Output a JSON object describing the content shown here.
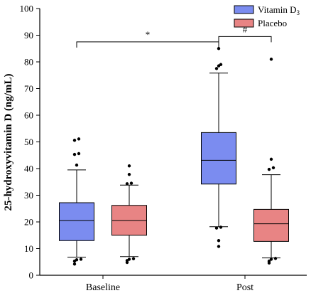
{
  "chart_data": {
    "type": "boxplot",
    "ylabel": "25-hydroxyvitamin D (ng/mL)",
    "ylim": [
      0,
      100
    ],
    "y_ticks": [
      0,
      10,
      20,
      30,
      40,
      50,
      60,
      70,
      80,
      90,
      100
    ],
    "categories": [
      "Baseline",
      "Post"
    ],
    "legend_placement": "top-right",
    "series": [
      {
        "name": "Vitamin D3",
        "name_base": "Vitamin D",
        "name_sub": "3",
        "color": "#7b8cf0",
        "boxes": [
          {
            "category": "Baseline",
            "whisker_low": 6.8,
            "q1": 13,
            "median": 20.5,
            "q3": 27.2,
            "whisker_high": 39.5,
            "outliers": [
              4.2,
              5.3,
              5.8,
              6.0,
              41.3,
              45.3,
              45.6,
              50.6,
              51.1
            ]
          },
          {
            "category": "Post",
            "whisker_low": 18.2,
            "q1": 34.2,
            "median": 43.1,
            "q3": 53.5,
            "whisker_high": 75.8,
            "outliers": [
              10.8,
              13.0,
              17.7,
              18.0,
              77.5,
              78.5,
              79.0,
              85.0
            ]
          }
        ]
      },
      {
        "name": "Placebo",
        "color": "#e88484",
        "boxes": [
          {
            "category": "Baseline",
            "whisker_low": 7.0,
            "q1": 15.0,
            "median": 20.5,
            "q3": 26.2,
            "whisker_high": 33.8,
            "outliers": [
              4.8,
              5.5,
              6.0,
              6.2,
              34.3,
              34.5,
              37.8,
              41.0
            ]
          },
          {
            "category": "Post",
            "whisker_low": 6.5,
            "q1": 12.7,
            "median": 19.3,
            "q3": 24.7,
            "whisker_high": 37.7,
            "outliers": [
              4.6,
              5.3,
              6.0,
              6.3,
              39.7,
              40.3,
              43.5,
              81.0
            ]
          }
        ]
      }
    ],
    "annotations": [
      {
        "label": "*",
        "from": "Baseline",
        "to": "Post",
        "level": 87.5
      },
      {
        "label": "#",
        "from": "Post:Vitamin D3",
        "to": "Post:Placebo",
        "level": 89.5
      }
    ]
  }
}
